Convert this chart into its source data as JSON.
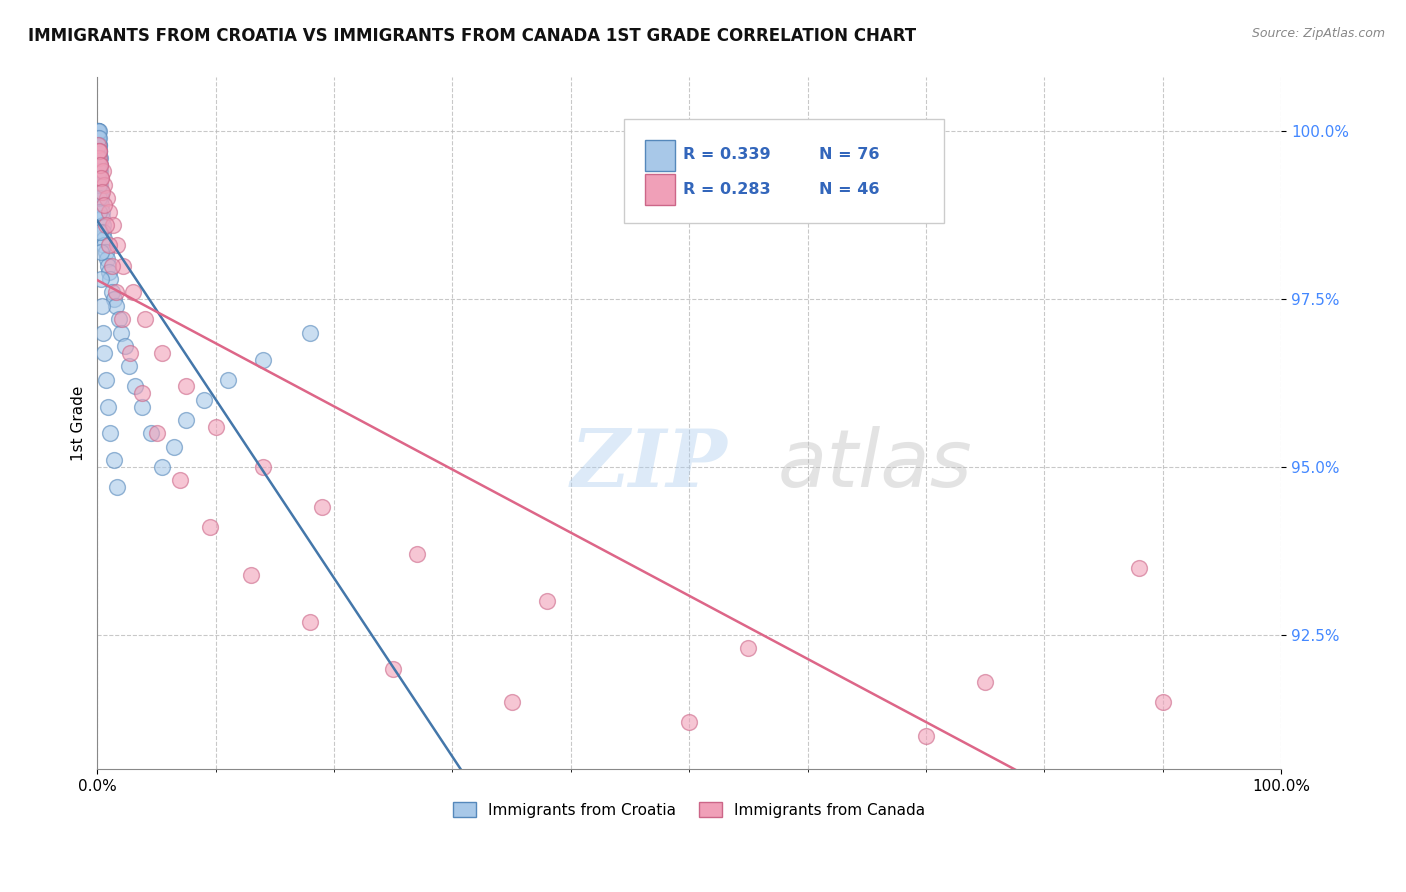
{
  "title": "IMMIGRANTS FROM CROATIA VS IMMIGRANTS FROM CANADA 1ST GRADE CORRELATION CHART",
  "source_text": "Source: ZipAtlas.com",
  "ylabel": "1st Grade",
  "xlim": [
    0,
    100
  ],
  "ylim": [
    90.5,
    100.8
  ],
  "yticks": [
    92.5,
    95.0,
    97.5,
    100.0
  ],
  "ytick_labels": [
    "92.5%",
    "95.0%",
    "97.5%",
    "100.0%"
  ],
  "legend_r_croatia": "0.339",
  "legend_n_croatia": "76",
  "legend_r_canada": "0.283",
  "legend_n_canada": "46",
  "color_croatia_fill": "#A8C8E8",
  "color_croatia_edge": "#5588BB",
  "color_canada_fill": "#F0A0B8",
  "color_canada_edge": "#CC6688",
  "color_trend_croatia": "#4477AA",
  "color_trend_canada": "#DD6688",
  "background_color": "#FFFFFF",
  "grid_color": "#BBBBBB",
  "scatter_croatia_x": [
    0.02,
    0.03,
    0.04,
    0.05,
    0.05,
    0.06,
    0.07,
    0.08,
    0.08,
    0.09,
    0.1,
    0.1,
    0.11,
    0.12,
    0.13,
    0.14,
    0.15,
    0.15,
    0.16,
    0.17,
    0.18,
    0.19,
    0.2,
    0.21,
    0.22,
    0.23,
    0.25,
    0.27,
    0.3,
    0.33,
    0.37,
    0.4,
    0.45,
    0.5,
    0.55,
    0.6,
    0.7,
    0.8,
    0.9,
    1.0,
    1.1,
    1.25,
    1.4,
    1.6,
    1.8,
    2.0,
    2.3,
    2.7,
    3.2,
    3.8,
    4.5,
    5.5,
    6.5,
    7.5,
    9.0,
    11.0,
    14.0,
    18.0,
    0.04,
    0.06,
    0.08,
    0.1,
    0.12,
    0.15,
    0.18,
    0.22,
    0.28,
    0.35,
    0.42,
    0.5,
    0.6,
    0.75,
    0.9,
    1.1,
    1.4,
    1.7
  ],
  "scatter_croatia_y": [
    100.0,
    100.0,
    99.9,
    100.0,
    99.8,
    99.9,
    100.0,
    99.8,
    99.9,
    99.7,
    99.8,
    100.0,
    99.7,
    99.6,
    99.8,
    99.5,
    99.7,
    99.9,
    99.6,
    99.4,
    99.5,
    99.3,
    99.6,
    99.4,
    99.2,
    99.5,
    99.3,
    99.1,
    99.0,
    98.9,
    98.8,
    98.7,
    98.6,
    98.5,
    98.4,
    98.3,
    98.2,
    98.1,
    98.0,
    97.9,
    97.8,
    97.6,
    97.5,
    97.4,
    97.2,
    97.0,
    96.8,
    96.5,
    96.2,
    95.9,
    95.5,
    95.0,
    95.3,
    95.7,
    96.0,
    96.3,
    96.6,
    97.0,
    99.5,
    99.3,
    99.6,
    99.4,
    99.2,
    99.0,
    98.8,
    98.5,
    98.2,
    97.8,
    97.4,
    97.0,
    96.7,
    96.3,
    95.9,
    95.5,
    95.1,
    94.7
  ],
  "scatter_canada_x": [
    0.08,
    0.12,
    0.18,
    0.25,
    0.35,
    0.45,
    0.6,
    0.8,
    1.0,
    1.3,
    1.7,
    2.2,
    3.0,
    4.0,
    5.5,
    7.5,
    10.0,
    14.0,
    19.0,
    27.0,
    38.0,
    55.0,
    75.0,
    90.0,
    0.15,
    0.22,
    0.32,
    0.42,
    0.55,
    0.72,
    0.95,
    1.2,
    1.6,
    2.1,
    2.8,
    3.8,
    5.0,
    7.0,
    9.5,
    13.0,
    18.0,
    25.0,
    35.0,
    50.0,
    70.0,
    88.0
  ],
  "scatter_canada_y": [
    99.8,
    99.6,
    99.7,
    99.5,
    99.3,
    99.4,
    99.2,
    99.0,
    98.8,
    98.6,
    98.3,
    98.0,
    97.6,
    97.2,
    96.7,
    96.2,
    95.6,
    95.0,
    94.4,
    93.7,
    93.0,
    92.3,
    91.8,
    91.5,
    99.7,
    99.5,
    99.3,
    99.1,
    98.9,
    98.6,
    98.3,
    98.0,
    97.6,
    97.2,
    96.7,
    96.1,
    95.5,
    94.8,
    94.1,
    93.4,
    92.7,
    92.0,
    91.5,
    91.2,
    91.0,
    93.5
  ]
}
